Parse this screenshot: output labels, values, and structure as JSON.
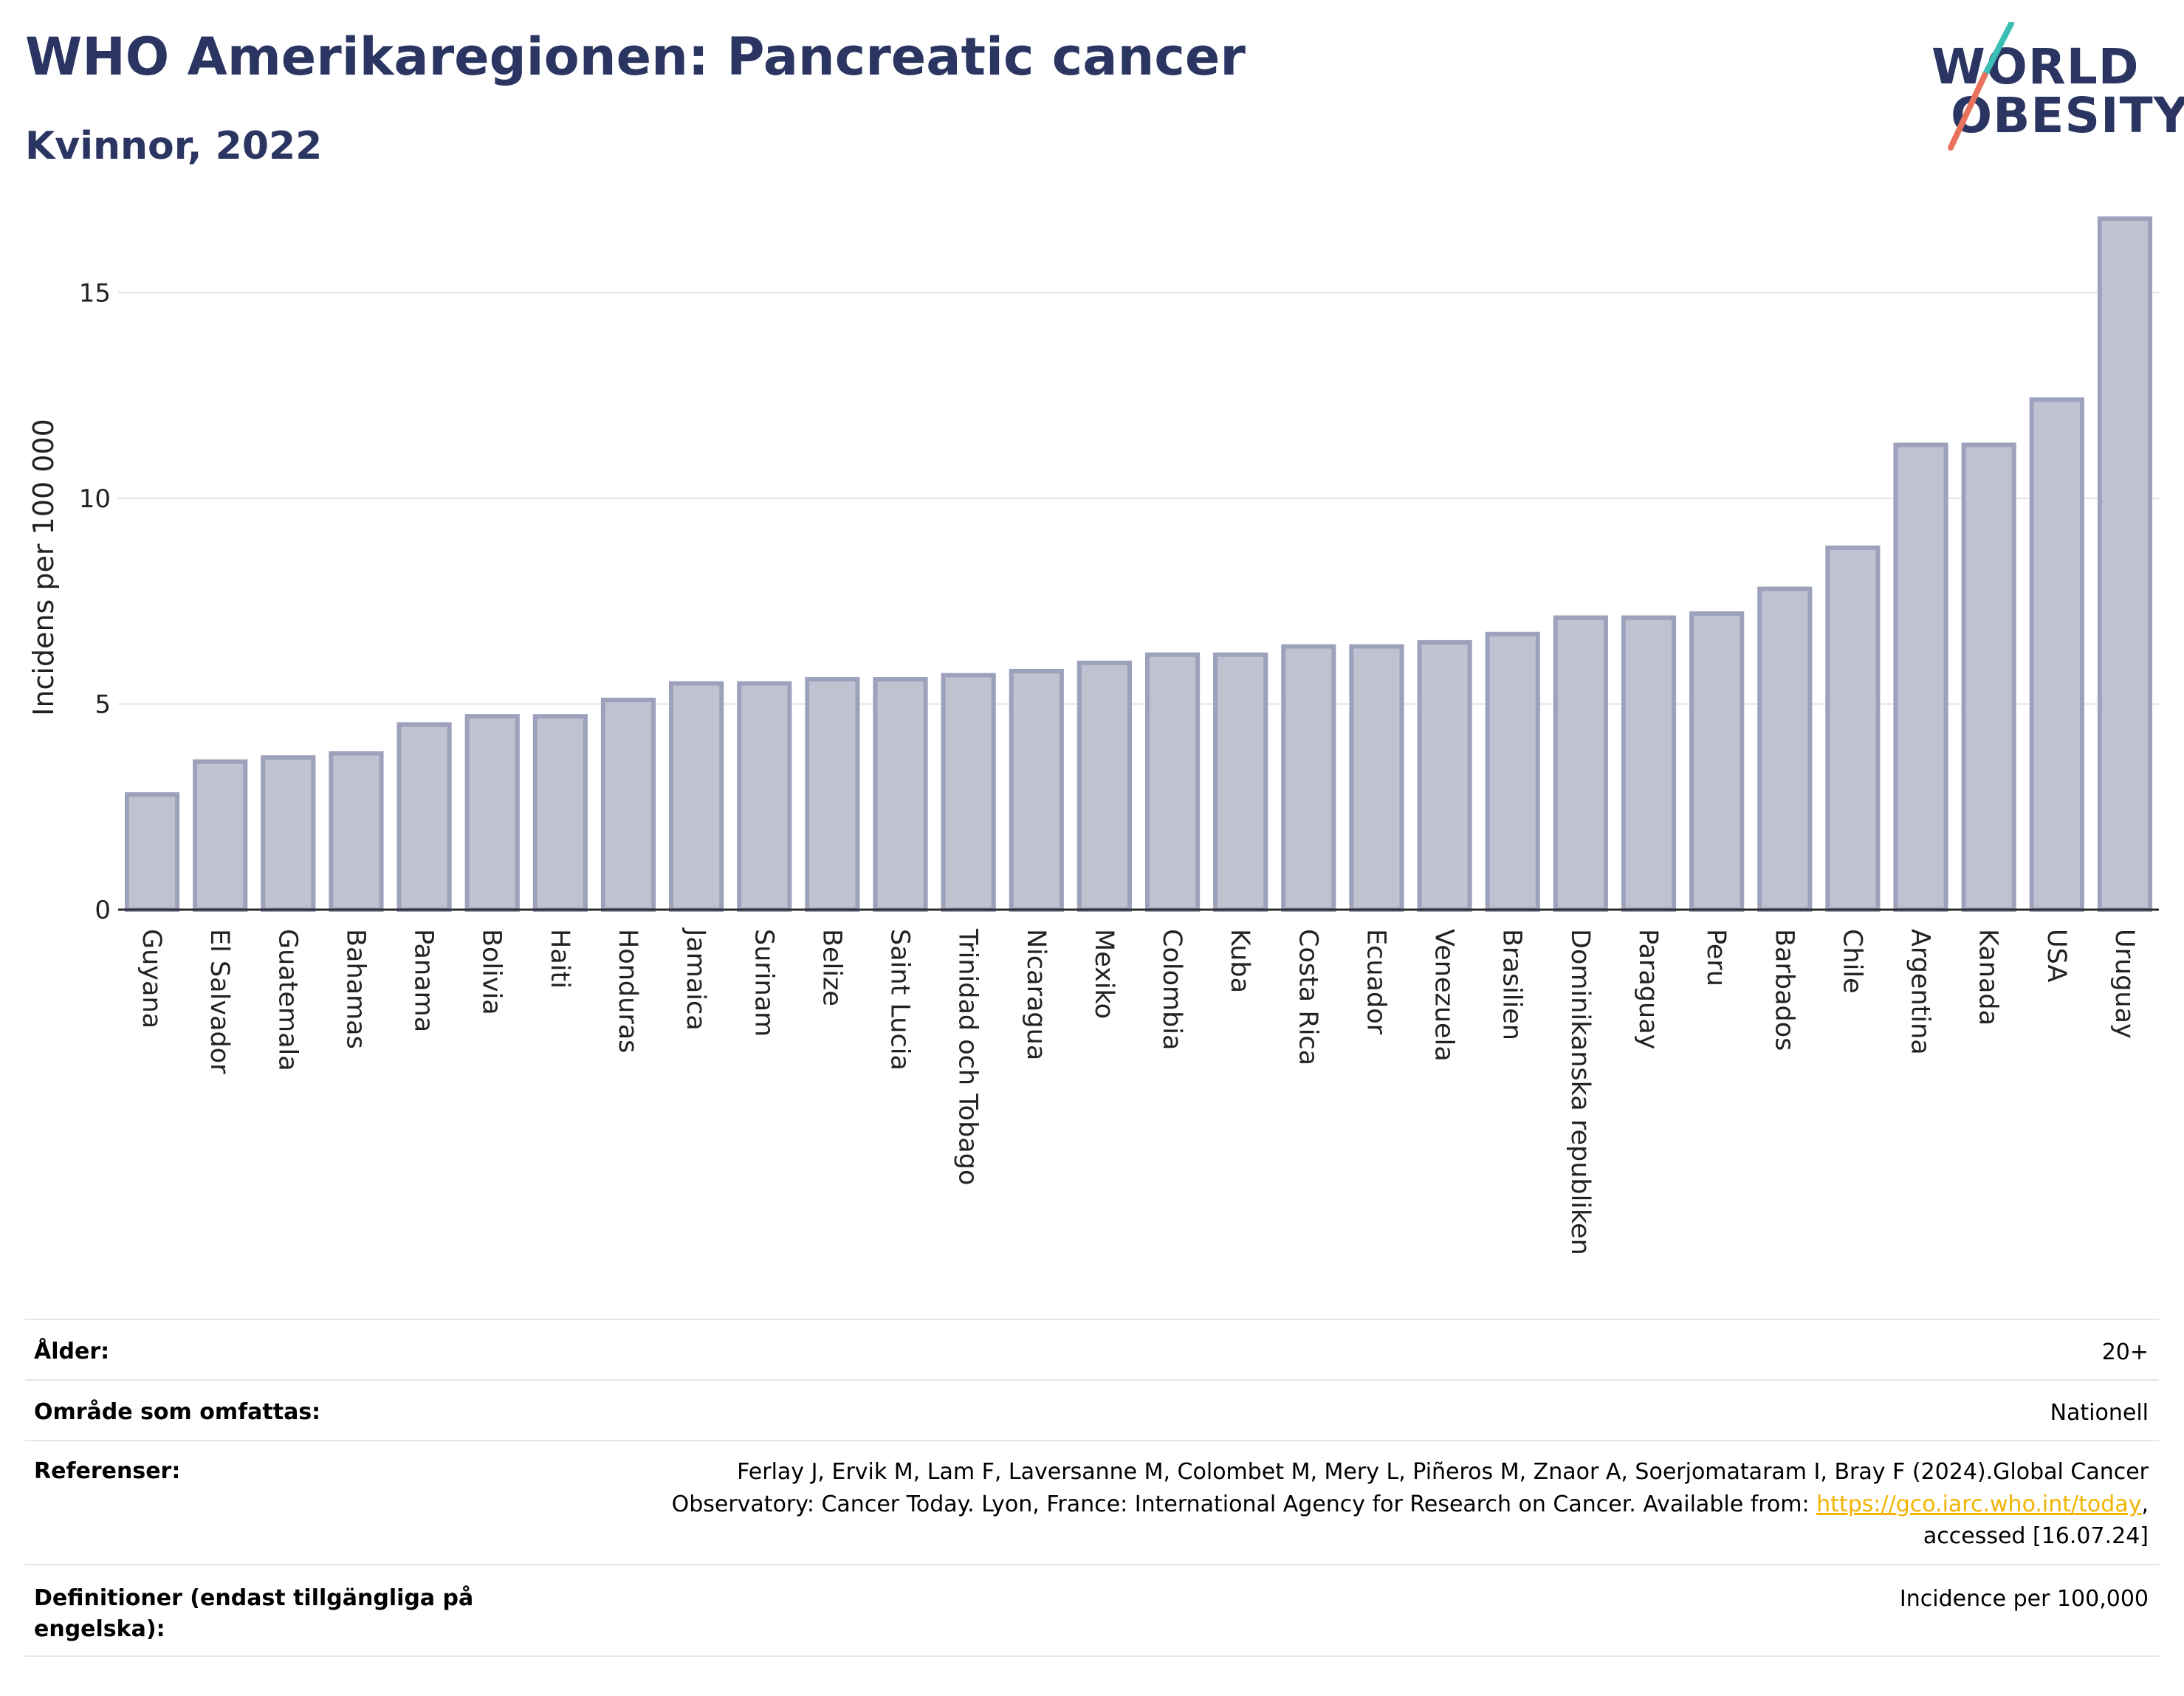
{
  "header": {
    "title": "WHO Amerikaregionen: Pancreatic cancer",
    "subtitle": "Kvinnor, 2022"
  },
  "logo": {
    "line1": "WORLD",
    "line2": "OBESITY",
    "colors": {
      "text": "#2b3561",
      "slash_teal": "#3cbfb4",
      "slash_red": "#e8725c"
    }
  },
  "chart_data": {
    "type": "bar",
    "title": "",
    "xlabel": "",
    "ylabel": "Incidens per 100 000",
    "ylim": [
      0,
      17
    ],
    "yticks": [
      0,
      5,
      10,
      15
    ],
    "grid": true,
    "bar_fill": "#bfc2d1",
    "bar_stroke": "#9da1bb",
    "categories": [
      "Guyana",
      "El Salvador",
      "Guatemala",
      "Bahamas",
      "Panama",
      "Bolivia",
      "Haiti",
      "Honduras",
      "Jamaica",
      "Surinam",
      "Belize",
      "Saint Lucia",
      "Trinidad och Tobago",
      "Nicaragua",
      "Mexiko",
      "Colombia",
      "Kuba",
      "Costa Rica",
      "Ecuador",
      "Venezuela",
      "Brasilien",
      "Dominikanska republiken",
      "Paraguay",
      "Peru",
      "Barbados",
      "Chile",
      "Argentina",
      "Kanada",
      "USA",
      "Uruguay"
    ],
    "values": [
      2.8,
      3.6,
      3.7,
      3.8,
      4.5,
      4.7,
      4.7,
      5.1,
      5.5,
      5.5,
      5.6,
      5.6,
      5.7,
      5.8,
      6.0,
      6.2,
      6.2,
      6.4,
      6.4,
      6.5,
      6.7,
      7.1,
      7.1,
      7.2,
      7.8,
      8.8,
      11.3,
      11.3,
      12.4,
      16.8
    ]
  },
  "meta": {
    "age_label": "Ålder:",
    "age_value": "20+",
    "area_label": "Område som omfattas:",
    "area_value": "Nationell",
    "refs_label": "Referenser:",
    "refs_line1": "Ferlay J, Ervik M, Lam F, Laversanne M, Colombet M, Mery L, Piñeros M, Znaor A, Soerjomataram I, Bray F (2024).Global Cancer",
    "refs_line2": "Observatory: Cancer Today. Lyon, France: International Agency for Research on Cancer. Available from: ",
    "refs_link": "https://gco.iarc.who.int/today",
    "refs_line2_end": ",",
    "refs_line3": "accessed [16.07.24]",
    "defs_label": "Definitioner (endast tillgängliga på engelska):",
    "defs_value": "Incidence per 100,000"
  }
}
